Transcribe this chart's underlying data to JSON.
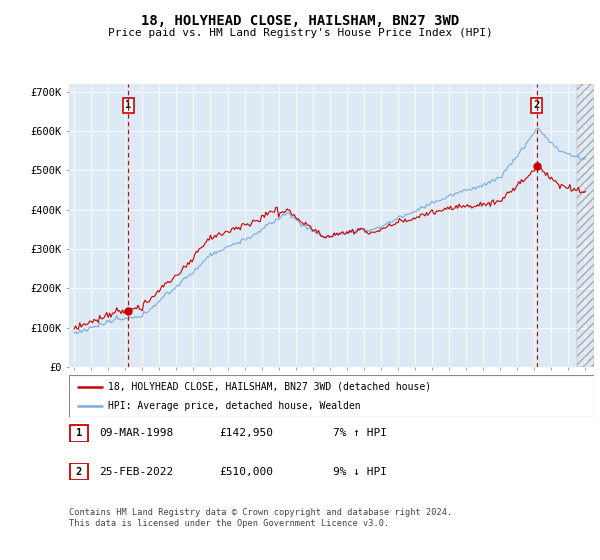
{
  "title": "18, HOLYHEAD CLOSE, HAILSHAM, BN27 3WD",
  "subtitle": "Price paid vs. HM Land Registry's House Price Index (HPI)",
  "ylim": [
    0,
    720000
  ],
  "yticks": [
    0,
    100000,
    200000,
    300000,
    400000,
    500000,
    600000,
    700000
  ],
  "ytick_labels": [
    "£0",
    "£100K",
    "£200K",
    "£300K",
    "£400K",
    "£500K",
    "£600K",
    "£700K"
  ],
  "hpi_color": "#7aaddb",
  "price_color": "#cc0000",
  "background_color": "#ddeaf5",
  "ann1_x": 1998.18,
  "ann1_y": 142950,
  "ann2_x": 2022.13,
  "ann2_y": 510000,
  "legend_line1": "18, HOLYHEAD CLOSE, HAILSHAM, BN27 3WD (detached house)",
  "legend_line2": "HPI: Average price, detached house, Wealden",
  "ann1_date": "09-MAR-1998",
  "ann1_price": "£142,950",
  "ann1_hpi": "7% ↑ HPI",
  "ann2_date": "25-FEB-2022",
  "ann2_price": "£510,000",
  "ann2_hpi": "9% ↓ HPI",
  "footer": "Contains HM Land Registry data © Crown copyright and database right 2024.\nThis data is licensed under the Open Government Licence v3.0.",
  "xtick_years": [
    1995,
    1996,
    1997,
    1998,
    1999,
    2000,
    2001,
    2002,
    2003,
    2004,
    2005,
    2006,
    2007,
    2008,
    2009,
    2010,
    2011,
    2012,
    2013,
    2014,
    2015,
    2016,
    2017,
    2018,
    2019,
    2020,
    2021,
    2022,
    2023,
    2024,
    2025
  ],
  "xmin": 1994.7,
  "xmax": 2025.5
}
